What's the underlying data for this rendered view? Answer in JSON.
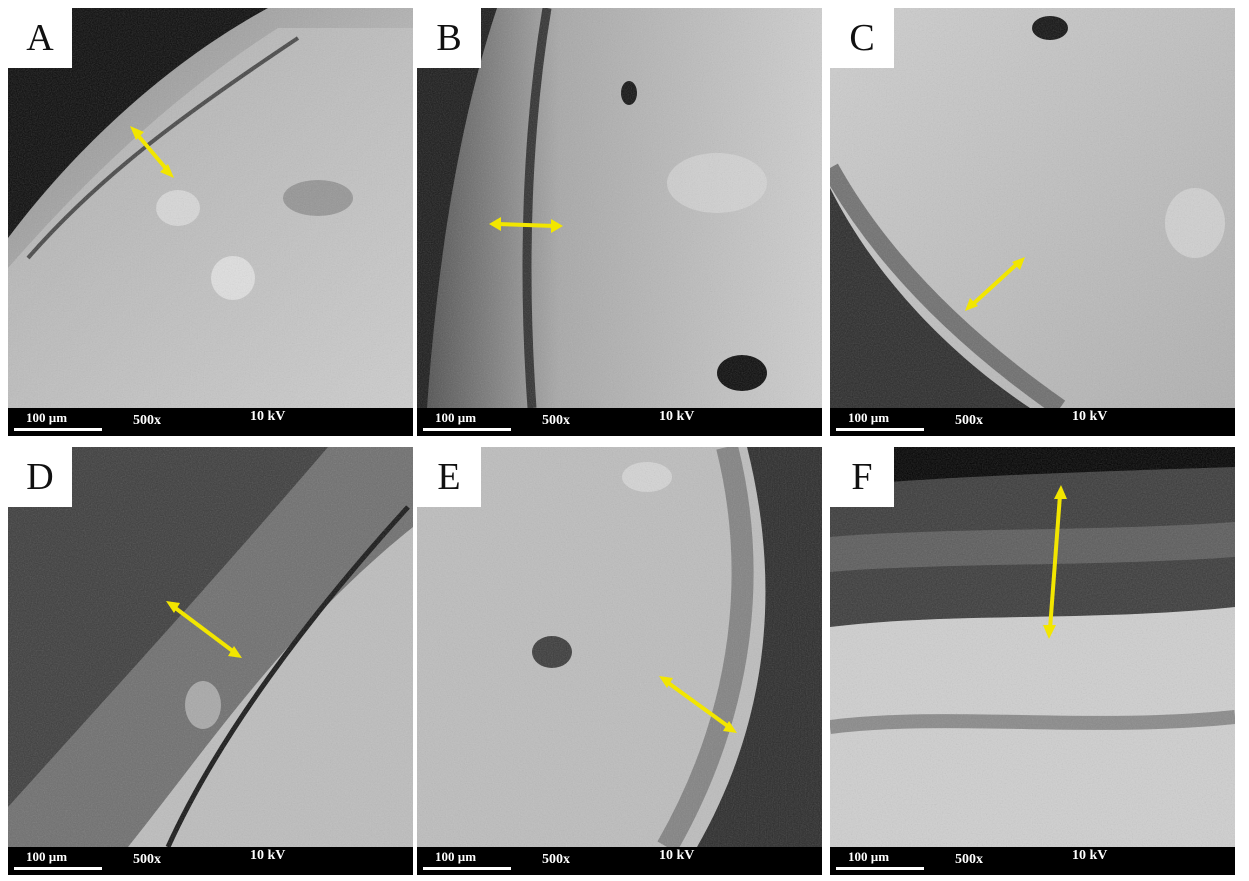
{
  "panels": [
    {
      "letter": "A",
      "scale": "100 µm",
      "mag": "500x",
      "kv": "10 kV",
      "icon": "sem-micrograph-icon"
    },
    {
      "letter": "B",
      "scale": "100 µm",
      "mag": "500x",
      "kv": "10 kV",
      "icon": "sem-micrograph-icon"
    },
    {
      "letter": "C",
      "scale": "100 µm",
      "mag": "500x",
      "kv": "10 kV",
      "icon": "sem-micrograph-icon"
    },
    {
      "letter": "D",
      "scale": "100 µm",
      "mag": "500x",
      "kv": "10 kV",
      "icon": "sem-micrograph-icon"
    },
    {
      "letter": "E",
      "scale": "100 µm",
      "mag": "500x",
      "kv": "10 kV",
      "icon": "sem-micrograph-icon"
    },
    {
      "letter": "F",
      "scale": "100 µm",
      "mag": "500x",
      "kv": "10 kV",
      "icon": "sem-micrograph-icon"
    }
  ],
  "colors": {
    "arrow": "#f2e600",
    "databar": "#000000",
    "label_bg": "#ffffff"
  }
}
